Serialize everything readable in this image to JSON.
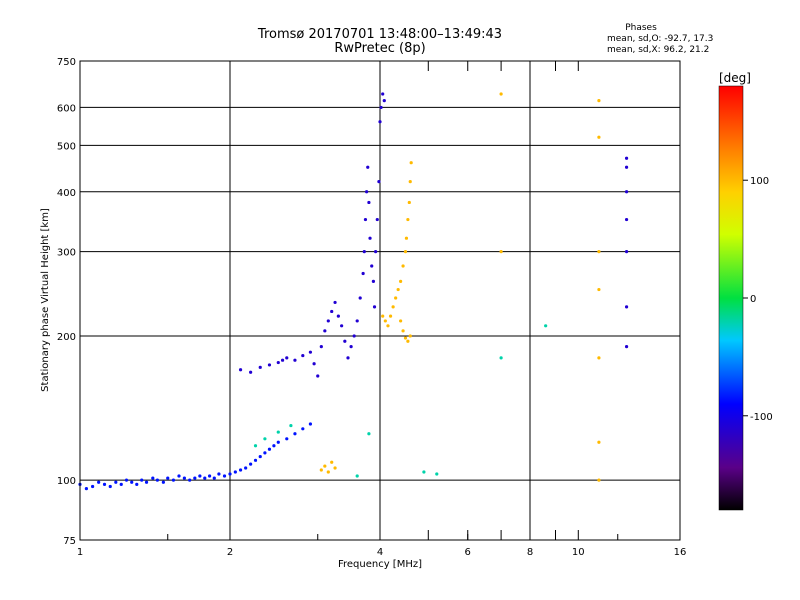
{
  "chart_data": {
    "type": "scatter",
    "title": "Tromsø 20170701 13:48:00–13:49:43",
    "subtitle": "RwPretec (8p)",
    "xlabel": "Frequency [MHz]",
    "ylabel": "Stationary phase Virtual Height [km]",
    "x_scale": "log2",
    "y_scale": "log",
    "xlim": [
      1,
      16
    ],
    "ylim": [
      75,
      750
    ],
    "x_ticks": [
      "1",
      "2",
      "4",
      "6",
      "8",
      "10",
      "16"
    ],
    "y_ticks": [
      "75",
      "100",
      "200",
      "300",
      "400",
      "500",
      "600",
      "750"
    ],
    "grid": true,
    "phase_stats": {
      "title": "Phases",
      "line_o": "mean, sd,O: -92.7, 17.3",
      "line_x": "mean, sd,X:  96.2, 21.2"
    },
    "colorbar": {
      "label": "[deg]",
      "range": [
        -180,
        180
      ],
      "ticks": [
        "100",
        "0",
        "-100"
      ],
      "colormap": "rainbow: black, purple, blue, cyan, green, yellow, orange, red"
    },
    "series": [
      {
        "phase_deg": -85,
        "points": [
          [
            1.0,
            98
          ],
          [
            1.03,
            96
          ],
          [
            1.06,
            97
          ],
          [
            1.09,
            99
          ],
          [
            1.12,
            98
          ],
          [
            1.15,
            97
          ],
          [
            1.18,
            99
          ],
          [
            1.21,
            98
          ],
          [
            1.24,
            100
          ],
          [
            1.27,
            99
          ],
          [
            1.3,
            98
          ],
          [
            1.33,
            100
          ],
          [
            1.36,
            99
          ],
          [
            1.4,
            101
          ],
          [
            1.43,
            100
          ],
          [
            1.47,
            99
          ],
          [
            1.5,
            101
          ],
          [
            1.54,
            100
          ],
          [
            1.58,
            102
          ],
          [
            1.62,
            101
          ],
          [
            1.66,
            100
          ],
          [
            1.7,
            101
          ],
          [
            1.74,
            102
          ],
          [
            1.78,
            101
          ],
          [
            1.82,
            102
          ],
          [
            1.86,
            101
          ],
          [
            1.9,
            103
          ],
          [
            1.95,
            102
          ],
          [
            2.0,
            103
          ],
          [
            2.05,
            104
          ],
          [
            2.1,
            105
          ],
          [
            2.15,
            106
          ],
          [
            2.2,
            108
          ],
          [
            2.25,
            110
          ],
          [
            2.3,
            112
          ],
          [
            2.35,
            114
          ],
          [
            2.4,
            116
          ],
          [
            2.45,
            118
          ],
          [
            2.5,
            120
          ],
          [
            2.6,
            122
          ],
          [
            2.7,
            125
          ],
          [
            2.8,
            128
          ],
          [
            2.9,
            131
          ]
        ]
      },
      {
        "phase_deg": -110,
        "points": [
          [
            2.1,
            170
          ],
          [
            2.2,
            168
          ],
          [
            2.3,
            172
          ],
          [
            2.4,
            174
          ],
          [
            2.5,
            176
          ],
          [
            2.55,
            178
          ],
          [
            2.6,
            180
          ],
          [
            2.7,
            178
          ],
          [
            2.8,
            182
          ],
          [
            2.9,
            185
          ],
          [
            2.95,
            175
          ],
          [
            3.0,
            165
          ],
          [
            3.05,
            190
          ],
          [
            3.1,
            205
          ],
          [
            3.15,
            215
          ],
          [
            3.2,
            225
          ],
          [
            3.25,
            235
          ],
          [
            3.3,
            220
          ],
          [
            3.35,
            210
          ],
          [
            3.4,
            195
          ],
          [
            3.45,
            180
          ],
          [
            3.5,
            190
          ],
          [
            3.55,
            200
          ],
          [
            3.6,
            215
          ],
          [
            3.65,
            240
          ],
          [
            3.7,
            270
          ],
          [
            3.72,
            300
          ],
          [
            3.74,
            350
          ],
          [
            3.76,
            400
          ],
          [
            3.78,
            450
          ],
          [
            3.8,
            380
          ],
          [
            3.82,
            320
          ],
          [
            3.85,
            280
          ],
          [
            3.88,
            260
          ],
          [
            3.9,
            230
          ],
          [
            3.92,
            300
          ],
          [
            3.95,
            350
          ],
          [
            3.98,
            420
          ],
          [
            4.0,
            560
          ],
          [
            4.02,
            600
          ],
          [
            4.05,
            640
          ],
          [
            4.08,
            620
          ],
          [
            12.5,
            190
          ],
          [
            12.5,
            230
          ],
          [
            12.5,
            300
          ],
          [
            12.5,
            350
          ],
          [
            12.5,
            400
          ],
          [
            12.5,
            450
          ],
          [
            12.5,
            470
          ]
        ]
      },
      {
        "phase_deg": 100,
        "points": [
          [
            4.05,
            220
          ],
          [
            4.1,
            215
          ],
          [
            4.15,
            210
          ],
          [
            4.2,
            220
          ],
          [
            4.25,
            230
          ],
          [
            4.3,
            240
          ],
          [
            4.35,
            250
          ],
          [
            4.4,
            260
          ],
          [
            4.45,
            280
          ],
          [
            4.5,
            300
          ],
          [
            4.52,
            320
          ],
          [
            4.55,
            350
          ],
          [
            4.58,
            380
          ],
          [
            4.6,
            420
          ],
          [
            4.62,
            460
          ],
          [
            4.6,
            200
          ],
          [
            4.55,
            195
          ],
          [
            4.5,
            198
          ],
          [
            4.45,
            205
          ],
          [
            4.4,
            215
          ],
          [
            3.05,
            105
          ],
          [
            3.1,
            107
          ],
          [
            3.15,
            104
          ],
          [
            3.2,
            109
          ],
          [
            3.25,
            106
          ],
          [
            7.0,
            640
          ],
          [
            7.0,
            300
          ],
          [
            11.0,
            620
          ],
          [
            11.0,
            520
          ],
          [
            11.0,
            300
          ],
          [
            11.0,
            250
          ],
          [
            11.0,
            180
          ],
          [
            11.0,
            120
          ],
          [
            11.0,
            100
          ]
        ]
      },
      {
        "phase_deg": -20,
        "points": [
          [
            2.25,
            118
          ],
          [
            2.35,
            122
          ],
          [
            2.5,
            126
          ],
          [
            2.65,
            130
          ],
          [
            3.6,
            102
          ],
          [
            3.8,
            125
          ],
          [
            4.9,
            104
          ],
          [
            5.2,
            103
          ],
          [
            7.0,
            180
          ],
          [
            8.6,
            210
          ]
        ]
      }
    ]
  }
}
